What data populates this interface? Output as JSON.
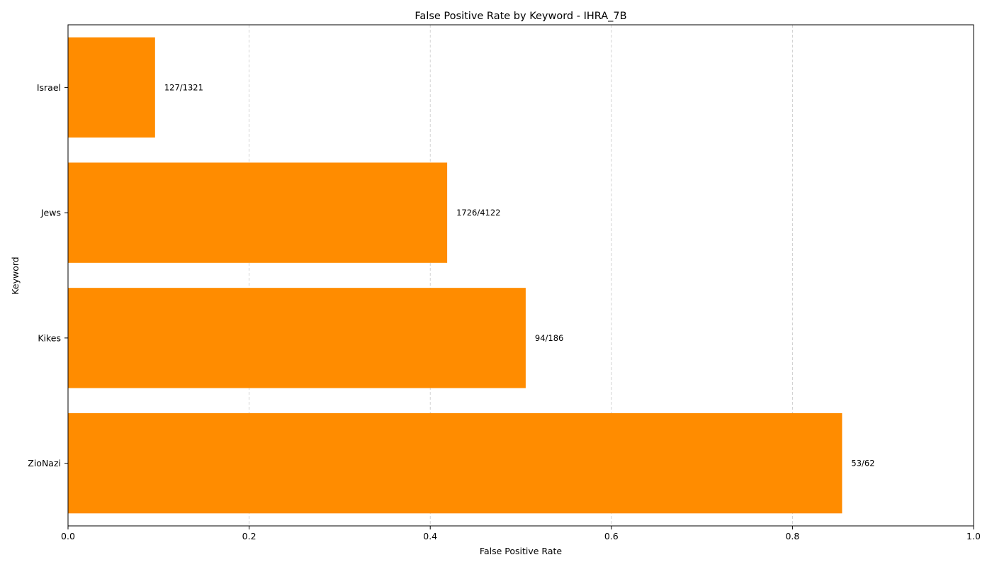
{
  "chart_data": {
    "type": "bar",
    "orientation": "horizontal",
    "title": "False Positive Rate by Keyword - IHRA_7B",
    "xlabel": "False Positive Rate",
    "ylabel": "Keyword",
    "xlim": [
      0,
      1.0
    ],
    "xticks": [
      0.0,
      0.2,
      0.4,
      0.6,
      0.8,
      1.0
    ],
    "xtick_labels": [
      "0.0",
      "0.2",
      "0.4",
      "0.6",
      "0.8",
      "1.0"
    ],
    "grid": {
      "x": true,
      "y": false,
      "style": "dashed"
    },
    "bar_color": "#ff8c00",
    "categories": [
      "Israel",
      "Jews",
      "Kikes",
      "ZioNazi"
    ],
    "values": [
      0.0961,
      0.4187,
      0.5054,
      0.8548
    ],
    "data_labels": [
      "127/1321",
      "1726/4122",
      "94/186",
      "53/62"
    ]
  }
}
